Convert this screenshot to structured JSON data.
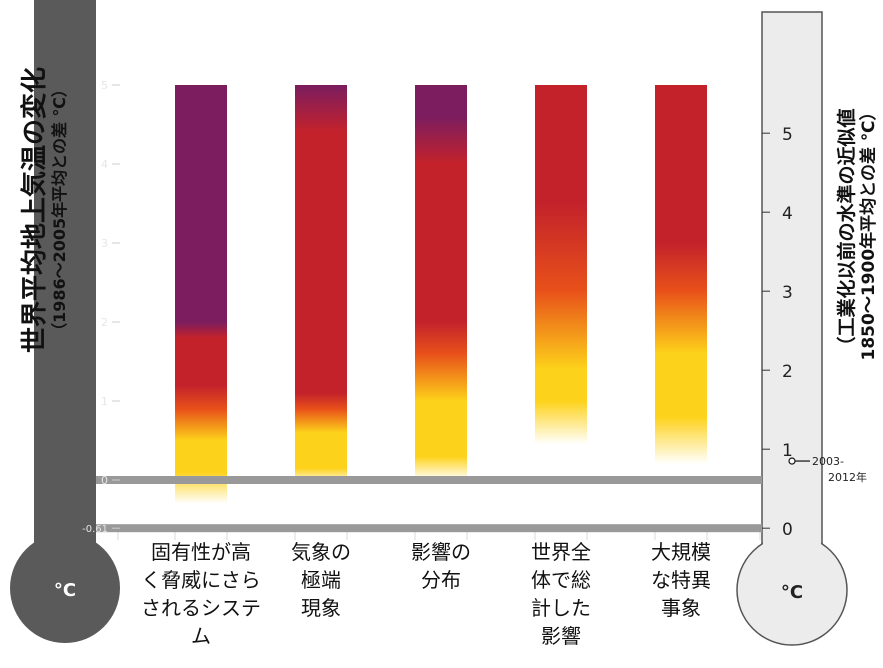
{
  "chart_data": {
    "type": "bar",
    "title": "",
    "left_axis": {
      "label_line1": "世界平均地上気温の変化",
      "label_line2": "（1986～2005年平均との差 ℃）",
      "ticks": [
        {
          "value": 5,
          "label": "5"
        },
        {
          "value": 4,
          "label": "4"
        },
        {
          "value": 3,
          "label": "3"
        },
        {
          "value": 2,
          "label": "2"
        },
        {
          "value": 1,
          "label": "1"
        },
        {
          "value": 0,
          "label": "0"
        },
        {
          "value": -0.61,
          "label": "-0.61"
        }
      ],
      "range": [
        -0.61,
        5
      ],
      "bulb_label": "°C",
      "color": "#5a5a5a"
    },
    "right_axis": {
      "label_line1": "（工業化以前の水準の近似値",
      "label_line2": "1850～1900年平均との差 ℃）",
      "ticks": [
        {
          "value": 5,
          "label": "5"
        },
        {
          "value": 4,
          "label": "4"
        },
        {
          "value": 3,
          "label": "3"
        },
        {
          "value": 2,
          "label": "2"
        },
        {
          "value": 1,
          "label": "1"
        },
        {
          "value": 0,
          "label": "0"
        }
      ],
      "offset_from_left_axis": 0.61,
      "marker": {
        "value": 0.85,
        "label_line1": "2003-",
        "label_line2": "2012年"
      },
      "bulb_label": "°C",
      "color": "#ececec"
    },
    "reference_lines": [
      {
        "left_value": 0,
        "color": "#999999"
      },
      {
        "left_value": -0.61,
        "color": "#999999"
      }
    ],
    "categories": [
      {
        "lines": [
          "固有性が高",
          "く脅威にさら",
          "されるシステ",
          "ム"
        ]
      },
      {
        "lines": [
          "気象の",
          "極端",
          "現象"
        ]
      },
      {
        "lines": [
          "影響の",
          "分布"
        ]
      },
      {
        "lines": [
          "世界全",
          "体で総",
          "計した",
          "影響"
        ]
      },
      {
        "lines": [
          "大規模",
          "な特異",
          "事象"
        ]
      }
    ],
    "risk_colors": {
      "none": "#ffffff",
      "moderate": "#fdd21a",
      "high": "#e8501a",
      "very_high": "#c4222b",
      "very_high_plus": "#7b1d5f"
    },
    "series": [
      {
        "stops": [
          {
            "v": -0.3,
            "c": "none"
          },
          {
            "v": 0.1,
            "c": "moderate"
          },
          {
            "v": 0.5,
            "c": "moderate"
          },
          {
            "v": 0.9,
            "c": "high"
          },
          {
            "v": 1.2,
            "c": "very_high"
          },
          {
            "v": 1.8,
            "c": "very_high"
          },
          {
            "v": 2.0,
            "c": "very_high_plus"
          },
          {
            "v": 5,
            "c": "very_high_plus"
          }
        ]
      },
      {
        "stops": [
          {
            "v": -0.05,
            "c": "none"
          },
          {
            "v": 0.15,
            "c": "moderate"
          },
          {
            "v": 0.6,
            "c": "moderate"
          },
          {
            "v": 0.9,
            "c": "high"
          },
          {
            "v": 1.1,
            "c": "very_high"
          },
          {
            "v": 4.4,
            "c": "very_high"
          },
          {
            "v": 5,
            "c": "very_high_plus"
          }
        ]
      },
      {
        "stops": [
          {
            "v": 0.0,
            "c": "none"
          },
          {
            "v": 0.3,
            "c": "moderate"
          },
          {
            "v": 1.0,
            "c": "moderate"
          },
          {
            "v": 1.6,
            "c": "high"
          },
          {
            "v": 2.0,
            "c": "very_high"
          },
          {
            "v": 4.0,
            "c": "very_high"
          },
          {
            "v": 4.6,
            "c": "very_high_plus"
          },
          {
            "v": 5,
            "c": "very_high_plus"
          }
        ]
      },
      {
        "stops": [
          {
            "v": 0.45,
            "c": "none"
          },
          {
            "v": 1.0,
            "c": "moderate"
          },
          {
            "v": 1.4,
            "c": "moderate"
          },
          {
            "v": 2.4,
            "c": "high"
          },
          {
            "v": 3.5,
            "c": "very_high"
          },
          {
            "v": 5,
            "c": "very_high"
          }
        ]
      },
      {
        "stops": [
          {
            "v": 0.2,
            "c": "none"
          },
          {
            "v": 0.8,
            "c": "moderate"
          },
          {
            "v": 1.6,
            "c": "moderate"
          },
          {
            "v": 2.4,
            "c": "high"
          },
          {
            "v": 3.0,
            "c": "very_high"
          },
          {
            "v": 5,
            "c": "very_high"
          }
        ]
      }
    ]
  }
}
